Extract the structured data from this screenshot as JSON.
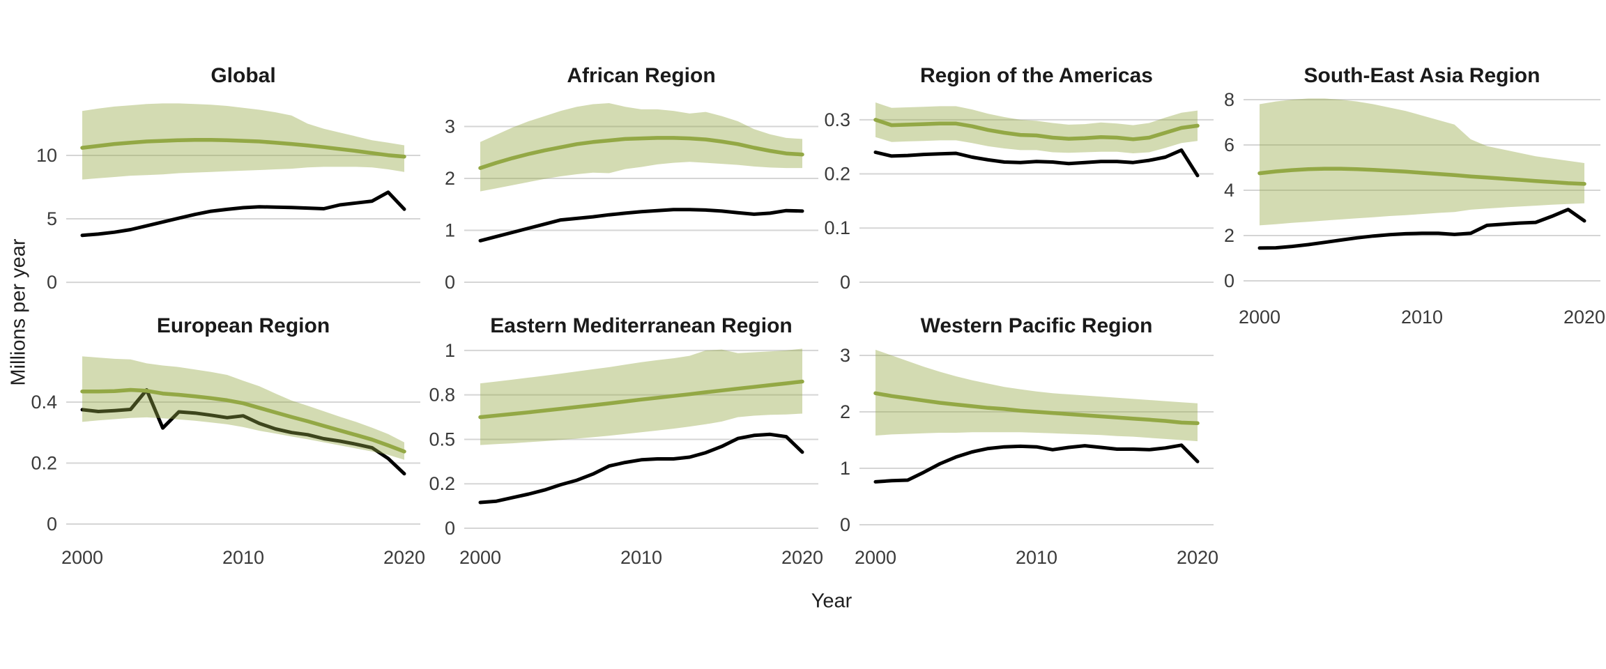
{
  "page": {
    "background": "#ffffff"
  },
  "axis_titles": {
    "y": "Millions per year",
    "x": "Year"
  },
  "colors": {
    "green_line": "#93a845",
    "band_fill": "#93a845",
    "band_opacity": 0.41,
    "black_line": "#000000",
    "gridline": "#d5d5d5",
    "facet_title_text": "#1a1a1a",
    "tick_label_text": "#3a3a3a",
    "axis_title_text": "#1f1f1f"
  },
  "chart_data": {
    "type": "line",
    "title": "",
    "xlabel": "Year",
    "ylabel": "Millions per year",
    "grid": "horizontal-major-only",
    "legend_position": "none",
    "years": [
      2000,
      2001,
      2002,
      2003,
      2004,
      2005,
      2006,
      2007,
      2008,
      2009,
      2010,
      2011,
      2012,
      2013,
      2014,
      2015,
      2016,
      2017,
      2018,
      2019,
      2020
    ],
    "x_ticks": {
      "values": [
        2000,
        2010,
        2020
      ],
      "labels": [
        "2000",
        "2010",
        "2020"
      ]
    },
    "facets": [
      {
        "title": "Global",
        "row": 0,
        "col": 0,
        "show_x_labels": false,
        "ylim": [
          -1.04,
          14.56
        ],
        "y_ticks": {
          "values": [
            0,
            5,
            10
          ],
          "labels": [
            "0",
            "5",
            "10"
          ]
        },
        "series": [
          {
            "name": "green_line",
            "values": [
              10.6,
              10.75,
              10.9,
              11.0,
              11.1,
              11.15,
              11.2,
              11.22,
              11.22,
              11.2,
              11.15,
              11.1,
              11.0,
              10.9,
              10.78,
              10.65,
              10.5,
              10.35,
              10.18,
              10.02,
              9.9
            ]
          },
          {
            "name": "band_upper",
            "values": [
              13.5,
              13.7,
              13.85,
              13.95,
              14.05,
              14.1,
              14.1,
              14.05,
              14.0,
              13.9,
              13.75,
              13.6,
              13.4,
              13.15,
              12.5,
              12.1,
              11.8,
              11.5,
              11.2,
              11.0,
              10.8
            ]
          },
          {
            "name": "band_lower",
            "values": [
              8.1,
              8.2,
              8.3,
              8.4,
              8.45,
              8.5,
              8.6,
              8.65,
              8.7,
              8.75,
              8.8,
              8.85,
              8.9,
              8.95,
              9.05,
              9.1,
              9.1,
              9.1,
              9.05,
              8.9,
              8.7
            ]
          },
          {
            "name": "black_line",
            "values": [
              3.7,
              3.8,
              3.95,
              4.15,
              4.45,
              4.75,
              5.05,
              5.35,
              5.6,
              5.75,
              5.88,
              5.95,
              5.92,
              5.9,
              5.85,
              5.8,
              6.1,
              6.25,
              6.4,
              7.1,
              5.76
            ]
          }
        ]
      },
      {
        "title": "African Region",
        "row": 0,
        "col": 1,
        "show_x_labels": false,
        "ylim": [
          -0.255,
          3.557
        ],
        "y_ticks": {
          "values": [
            0,
            1,
            2,
            3
          ],
          "labels": [
            "0",
            "1",
            "2",
            "3"
          ]
        },
        "series": [
          {
            "name": "green_line",
            "values": [
              2.2,
              2.3,
              2.39,
              2.47,
              2.54,
              2.6,
              2.66,
              2.7,
              2.73,
              2.76,
              2.77,
              2.78,
              2.78,
              2.77,
              2.75,
              2.71,
              2.66,
              2.59,
              2.53,
              2.48,
              2.46
            ]
          },
          {
            "name": "band_upper",
            "values": [
              2.7,
              2.84,
              2.98,
              3.1,
              3.2,
              3.3,
              3.38,
              3.43,
              3.45,
              3.38,
              3.33,
              3.33,
              3.3,
              3.25,
              3.28,
              3.2,
              3.1,
              2.95,
              2.85,
              2.78,
              2.76
            ]
          },
          {
            "name": "band_lower",
            "values": [
              1.75,
              1.81,
              1.87,
              1.93,
              1.99,
              2.04,
              2.08,
              2.11,
              2.1,
              2.18,
              2.22,
              2.27,
              2.3,
              2.32,
              2.3,
              2.28,
              2.26,
              2.23,
              2.21,
              2.2,
              2.2
            ]
          },
          {
            "name": "black_line",
            "values": [
              0.8,
              0.88,
              0.96,
              1.04,
              1.12,
              1.2,
              1.23,
              1.26,
              1.3,
              1.33,
              1.36,
              1.38,
              1.4,
              1.4,
              1.39,
              1.37,
              1.34,
              1.31,
              1.33,
              1.38,
              1.37
            ]
          }
        ]
      },
      {
        "title": "Region of the Americas",
        "row": 0,
        "col": 2,
        "show_x_labels": false,
        "ylim": [
          -0.0245,
          0.341
        ],
        "y_ticks": {
          "values": [
            0,
            0.1,
            0.2,
            0.3
          ],
          "labels": [
            "0",
            "0.1",
            "0.2",
            "0.3"
          ]
        },
        "series": [
          {
            "name": "green_line",
            "values": [
              0.3,
              0.29,
              0.291,
              0.292,
              0.293,
              0.293,
              0.288,
              0.281,
              0.276,
              0.272,
              0.271,
              0.267,
              0.265,
              0.266,
              0.268,
              0.267,
              0.264,
              0.267,
              0.276,
              0.285,
              0.289
            ]
          },
          {
            "name": "band_upper",
            "values": [
              0.332,
              0.322,
              0.323,
              0.324,
              0.325,
              0.325,
              0.319,
              0.311,
              0.305,
              0.3,
              0.298,
              0.294,
              0.291,
              0.292,
              0.295,
              0.293,
              0.29,
              0.294,
              0.304,
              0.313,
              0.317
            ]
          },
          {
            "name": "band_lower",
            "values": [
              0.268,
              0.259,
              0.26,
              0.261,
              0.262,
              0.262,
              0.257,
              0.251,
              0.247,
              0.244,
              0.244,
              0.24,
              0.239,
              0.24,
              0.241,
              0.241,
              0.238,
              0.24,
              0.248,
              0.257,
              0.261
            ]
          },
          {
            "name": "black_line",
            "values": [
              0.24,
              0.233,
              0.234,
              0.236,
              0.237,
              0.238,
              0.231,
              0.226,
              0.222,
              0.221,
              0.223,
              0.222,
              0.219,
              0.221,
              0.223,
              0.223,
              0.221,
              0.225,
              0.231,
              0.244,
              0.197
            ]
          }
        ]
      },
      {
        "title": "South-East Asia Region",
        "row": 0,
        "col": 3,
        "show_x_labels": true,
        "ylim": [
          -0.646,
          8.092
        ],
        "y_ticks": {
          "values": [
            0,
            2,
            4,
            6,
            8
          ],
          "labels": [
            "0",
            "2",
            "4",
            "6",
            "8"
          ]
        },
        "series": [
          {
            "name": "green_line",
            "values": [
              4.75,
              4.83,
              4.89,
              4.93,
              4.95,
              4.95,
              4.93,
              4.9,
              4.86,
              4.82,
              4.77,
              4.72,
              4.67,
              4.61,
              4.56,
              4.51,
              4.46,
              4.41,
              4.36,
              4.31,
              4.28
            ]
          },
          {
            "name": "band_upper",
            "values": [
              7.8,
              7.92,
              8.0,
              8.05,
              8.05,
              8.0,
              7.92,
              7.8,
              7.65,
              7.5,
              7.3,
              7.1,
              6.9,
              6.25,
              5.95,
              5.8,
              5.65,
              5.5,
              5.4,
              5.3,
              5.2
            ]
          },
          {
            "name": "band_lower",
            "values": [
              2.45,
              2.5,
              2.56,
              2.61,
              2.66,
              2.71,
              2.76,
              2.81,
              2.86,
              2.9,
              2.95,
              3.0,
              3.04,
              3.14,
              3.19,
              3.24,
              3.28,
              3.32,
              3.36,
              3.39,
              3.42
            ]
          },
          {
            "name": "black_line",
            "values": [
              1.45,
              1.46,
              1.52,
              1.6,
              1.7,
              1.8,
              1.9,
              1.98,
              2.04,
              2.08,
              2.1,
              2.1,
              2.05,
              2.1,
              2.45,
              2.5,
              2.55,
              2.58,
              2.85,
              3.15,
              2.65
            ]
          }
        ]
      },
      {
        "title": "European Region",
        "row": 1,
        "col": 0,
        "show_x_labels": true,
        "ylim": [
          -0.0526,
          0.5874
        ],
        "y_ticks": {
          "values": [
            0,
            0.2,
            0.4
          ],
          "labels": [
            "0",
            "0.2",
            "0.4"
          ]
        },
        "series": [
          {
            "name": "green_line",
            "values": [
              0.435,
              0.435,
              0.436,
              0.44,
              0.437,
              0.428,
              0.424,
              0.419,
              0.413,
              0.406,
              0.396,
              0.381,
              0.366,
              0.351,
              0.337,
              0.322,
              0.307,
              0.292,
              0.277,
              0.258,
              0.238
            ]
          },
          {
            "name": "band_upper",
            "values": [
              0.55,
              0.546,
              0.542,
              0.54,
              0.527,
              0.52,
              0.515,
              0.507,
              0.499,
              0.489,
              0.47,
              0.452,
              0.428,
              0.405,
              0.388,
              0.37,
              0.352,
              0.335,
              0.316,
              0.295,
              0.268
            ]
          },
          {
            "name": "band_lower",
            "values": [
              0.335,
              0.34,
              0.344,
              0.348,
              0.35,
              0.347,
              0.343,
              0.339,
              0.333,
              0.327,
              0.318,
              0.306,
              0.297,
              0.287,
              0.278,
              0.268,
              0.258,
              0.248,
              0.238,
              0.227,
              0.211
            ]
          },
          {
            "name": "black_line",
            "values": [
              0.375,
              0.369,
              0.372,
              0.376,
              0.44,
              0.315,
              0.368,
              0.364,
              0.357,
              0.349,
              0.355,
              0.33,
              0.312,
              0.3,
              0.293,
              0.28,
              0.272,
              0.262,
              0.25,
              0.215,
              0.165
            ]
          }
        ]
      },
      {
        "title": "Eastern Mediterranean Region",
        "row": 1,
        "col": 1,
        "show_x_labels": true,
        "ylim": [
          -0.0667,
          1.031
        ],
        "y_ticks": {
          "values": [
            0,
            0.25,
            0.5,
            0.75,
            1
          ],
          "labels": [
            "0",
            "0.2",
            "0.5",
            "0.8",
            "1"
          ]
        },
        "series": [
          {
            "name": "green_line",
            "values": [
              0.625,
              0.634,
              0.643,
              0.652,
              0.662,
              0.672,
              0.682,
              0.692,
              0.702,
              0.713,
              0.724,
              0.734,
              0.744,
              0.754,
              0.765,
              0.775,
              0.785,
              0.795,
              0.805,
              0.815,
              0.825
            ]
          },
          {
            "name": "band_upper",
            "values": [
              0.815,
              0.825,
              0.836,
              0.847,
              0.858,
              0.87,
              0.882,
              0.894,
              0.906,
              0.92,
              0.934,
              0.946,
              0.956,
              0.97,
              1.0,
              1.005,
              0.985,
              0.99,
              0.995,
              1.0,
              1.01
            ]
          },
          {
            "name": "band_lower",
            "values": [
              0.468,
              0.473,
              0.478,
              0.484,
              0.49,
              0.497,
              0.504,
              0.512,
              0.52,
              0.53,
              0.54,
              0.55,
              0.56,
              0.572,
              0.585,
              0.6,
              0.625,
              0.633,
              0.638,
              0.64,
              0.645
            ]
          },
          {
            "name": "black_line",
            "values": [
              0.145,
              0.152,
              0.172,
              0.192,
              0.215,
              0.245,
              0.27,
              0.305,
              0.35,
              0.37,
              0.385,
              0.39,
              0.39,
              0.4,
              0.425,
              0.46,
              0.505,
              0.522,
              0.528,
              0.515,
              0.428
            ]
          }
        ]
      },
      {
        "title": "Western Pacific Region",
        "row": 1,
        "col": 2,
        "show_x_labels": true,
        "ylim": [
          -0.2716,
          3.185
        ],
        "y_ticks": {
          "values": [
            0,
            1,
            2,
            3
          ],
          "labels": [
            "0",
            "1",
            "2",
            "3"
          ]
        },
        "series": [
          {
            "name": "green_line",
            "values": [
              2.33,
              2.28,
              2.24,
              2.2,
              2.16,
              2.13,
              2.1,
              2.07,
              2.05,
              2.02,
              2.0,
              1.98,
              1.96,
              1.94,
              1.92,
              1.9,
              1.88,
              1.86,
              1.84,
              1.81,
              1.8
            ]
          },
          {
            "name": "band_upper",
            "values": [
              3.1,
              3.0,
              2.9,
              2.8,
              2.71,
              2.63,
              2.56,
              2.5,
              2.44,
              2.4,
              2.36,
              2.33,
              2.31,
              2.29,
              2.27,
              2.25,
              2.23,
              2.21,
              2.19,
              2.17,
              2.15
            ]
          },
          {
            "name": "band_lower",
            "values": [
              1.58,
              1.6,
              1.61,
              1.62,
              1.63,
              1.63,
              1.64,
              1.64,
              1.64,
              1.64,
              1.63,
              1.62,
              1.61,
              1.6,
              1.59,
              1.57,
              1.56,
              1.54,
              1.52,
              1.5,
              1.48
            ]
          },
          {
            "name": "black_line",
            "values": [
              0.76,
              0.78,
              0.79,
              0.93,
              1.08,
              1.2,
              1.29,
              1.35,
              1.38,
              1.39,
              1.38,
              1.33,
              1.37,
              1.4,
              1.37,
              1.34,
              1.34,
              1.33,
              1.36,
              1.41,
              1.12
            ]
          }
        ]
      }
    ]
  }
}
